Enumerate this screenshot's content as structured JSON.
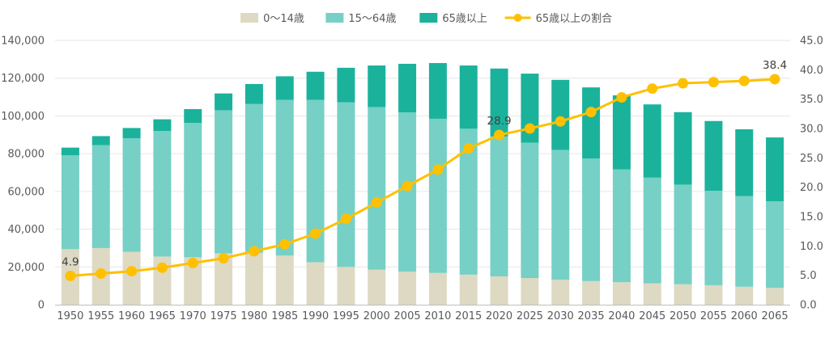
{
  "chart_data": {
    "type": "bar",
    "stacked": true,
    "categories": [
      "1950",
      "1955",
      "1960",
      "1965",
      "1970",
      "1975",
      "1980",
      "1985",
      "1990",
      "1995",
      "2000",
      "2005",
      "2010",
      "2015",
      "2020",
      "2025",
      "2030",
      "2035",
      "2040",
      "2045",
      "2050",
      "2055",
      "2060",
      "2065"
    ],
    "series": [
      {
        "name": "0～14歳",
        "color": "#ddd9c3",
        "values": [
          29400,
          30000,
          28000,
          25500,
          25100,
          27200,
          27500,
          26000,
          22500,
          20000,
          18500,
          17500,
          16800,
          15900,
          15000,
          14100,
          13200,
          12500,
          11900,
          11300,
          10800,
          10300,
          9500,
          8900
        ]
      },
      {
        "name": "15～64歳",
        "color": "#76d0c5",
        "values": [
          49700,
          54500,
          60200,
          66500,
          71200,
          75800,
          78800,
          82500,
          86000,
          87200,
          86200,
          84400,
          81700,
          77300,
          74100,
          71700,
          68800,
          64900,
          59800,
          56000,
          52800,
          50000,
          48000,
          45900
        ]
      },
      {
        "name": "65歳以上",
        "color": "#1bb29c",
        "values": [
          4100,
          4800,
          5400,
          6200,
          7300,
          8900,
          10600,
          12500,
          14900,
          18300,
          22000,
          25700,
          29500,
          33500,
          36000,
          36600,
          37100,
          37700,
          39200,
          38800,
          38400,
          37000,
          35400,
          33800
        ]
      }
    ],
    "line_series": {
      "name": "65歳以上の割合",
      "color": "#ffc000",
      "values": [
        4.9,
        5.3,
        5.7,
        6.3,
        7.1,
        7.9,
        9.1,
        10.3,
        12.1,
        14.6,
        17.4,
        20.2,
        23.0,
        26.6,
        28.9,
        30.0,
        31.2,
        32.8,
        35.3,
        36.8,
        37.7,
        37.9,
        38.1,
        38.4
      ]
    },
    "y_left": {
      "min": 0,
      "max": 140000,
      "step": 20000,
      "ticks": [
        "0",
        "20,000",
        "40,000",
        "60,000",
        "80,000",
        "100,000",
        "120,000",
        "140,000"
      ]
    },
    "y_right": {
      "min": 0,
      "max": 45,
      "step": 5,
      "ticks": [
        "0.0",
        "5.0",
        "10.0",
        "15.0",
        "20.0",
        "25.0",
        "30.0",
        "35.0",
        "40.0",
        "45.0"
      ]
    },
    "data_labels": [
      {
        "index": 0,
        "text": "4.9"
      },
      {
        "index": 14,
        "text": "28.9"
      },
      {
        "index": 23,
        "text": "38.4"
      }
    ],
    "grid": true,
    "legend_position": "top-center"
  }
}
